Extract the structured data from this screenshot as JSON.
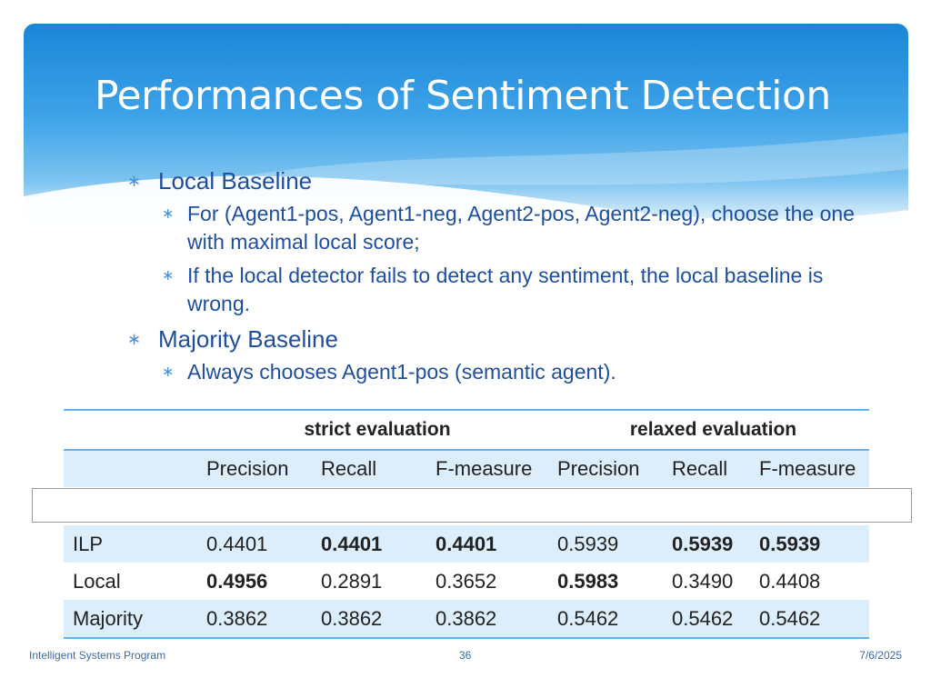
{
  "slide": {
    "title": "Performances of Sentiment Detection",
    "bullets": [
      {
        "text": "Local Baseline",
        "sub": [
          "For (Agent1-pos, Agent1-neg, Agent2-pos, Agent2-neg), choose the one with maximal local score;",
          "If the local detector fails to detect any sentiment, the local baseline is wrong."
        ]
      },
      {
        "text": "Majority Baseline",
        "sub": [
          "Always chooses Agent1-pos (semantic agent)."
        ]
      }
    ]
  },
  "table": {
    "group_headers": [
      "strict evaluation",
      "relaxed evaluation"
    ],
    "columns": [
      "Precision",
      "Recall",
      "F-measure",
      "Precision",
      "Recall",
      "F-measure"
    ],
    "rows": [
      {
        "label": "ILP",
        "values": [
          "0.4401",
          "0.4401",
          "0.4401",
          "0.5939",
          "0.5939",
          "0.5939"
        ],
        "bold": [
          false,
          true,
          true,
          false,
          true,
          true
        ]
      },
      {
        "label": "Local",
        "values": [
          "0.4956",
          "0.2891",
          "0.3652",
          "0.5983",
          "0.3490",
          "0.4408"
        ],
        "bold": [
          true,
          false,
          false,
          true,
          false,
          false
        ]
      },
      {
        "label": "Majority",
        "values": [
          "0.3862",
          "0.3862",
          "0.3862",
          "0.5462",
          "0.5462",
          "0.5462"
        ],
        "bold": [
          false,
          false,
          false,
          false,
          false,
          false
        ]
      }
    ]
  },
  "footer": {
    "left": "Intelligent Systems Program",
    "page": "36",
    "date": "7/6/2025"
  },
  "colors": {
    "accent": "#1a86d8",
    "table_border": "#62b4f0",
    "row_shade": "#dcedfb",
    "bullet_text": "#1f4e9c"
  }
}
